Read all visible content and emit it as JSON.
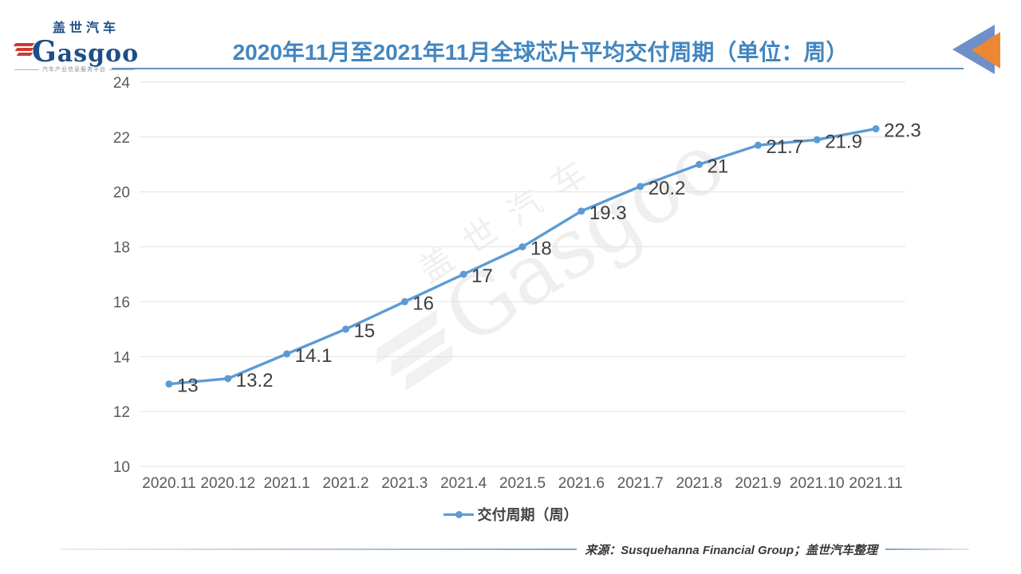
{
  "header": {
    "logo": {
      "cn": "盖世汽车",
      "en": "asgoo",
      "tagline": "汽车产业信息服务平台"
    },
    "title": "2020年11月至2021年11月全球芯片平均交付周期（单位：周）",
    "title_color": "#4386BF"
  },
  "chart_data": {
    "type": "line",
    "title": "2020年11月至2021年11月全球芯片平均交付周期（单位：周）",
    "categories": [
      "2020.11",
      "2020.12",
      "2021.1",
      "2021.2",
      "2021.3",
      "2021.4",
      "2021.5",
      "2021.6",
      "2021.7",
      "2021.8",
      "2021.9",
      "2021.10",
      "2021.11"
    ],
    "series": [
      {
        "name": "交付周期（周）",
        "values": [
          13,
          13.2,
          14.1,
          15,
          16,
          17,
          18,
          19.3,
          20.2,
          21,
          21.7,
          21.9,
          22.3
        ]
      }
    ],
    "xlabel": "",
    "ylabel": "",
    "ylim": [
      10,
      24
    ],
    "ytick_step": 2,
    "grid": true,
    "legend_position": "bottom",
    "line_color": "#5B9BD5",
    "label_color": "#3F3F3F",
    "axis_color": "#595959",
    "grid_color": "#E2E2E2"
  },
  "watermark": {
    "cn": "盖世汽车",
    "en": "Gasgoo"
  },
  "footer": {
    "source": "来源：Susquehanna Financial Group；盖世汽车整理"
  }
}
